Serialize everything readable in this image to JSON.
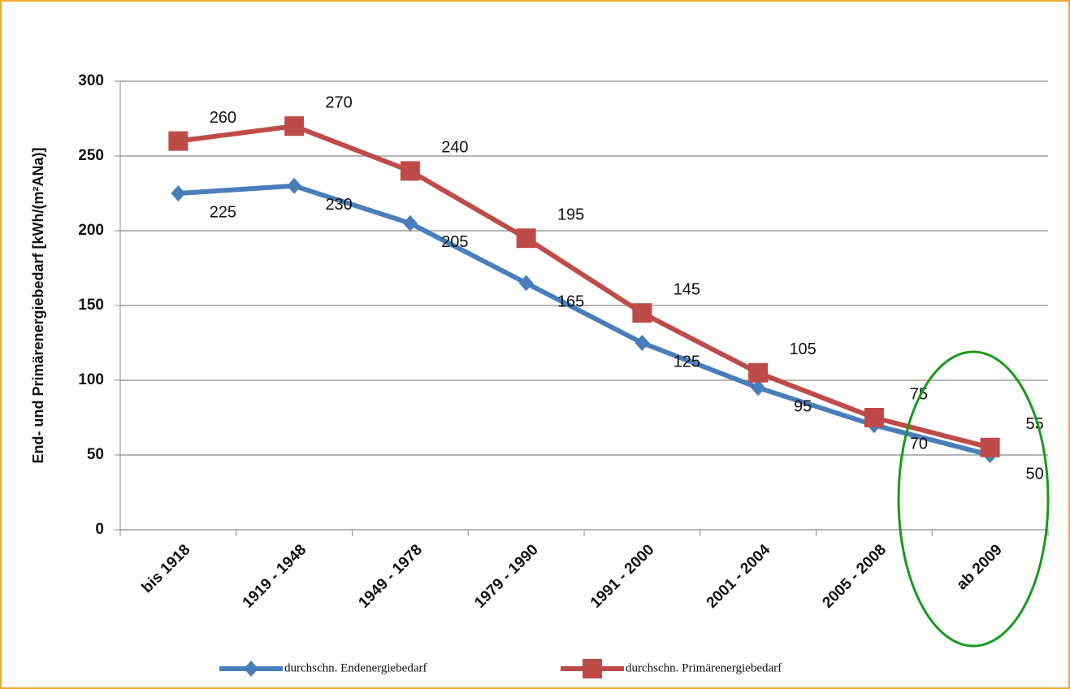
{
  "chart_data": {
    "type": "line",
    "y_label": "End- und Primärenergiebedarf [kWh/(m²ANa)]",
    "categories": [
      "bis 1918",
      "1919 - 1948",
      "1949 - 1978",
      "1979 - 1990",
      "1991 - 2000",
      "2001 - 2004",
      "2005 - 2008",
      "ab 2009"
    ],
    "series": [
      {
        "name": "durchschn. Endenergiebedarf",
        "color": "#4a7ebb",
        "marker": "diamond",
        "values": [
          225,
          230,
          205,
          165,
          125,
          95,
          70,
          50
        ]
      },
      {
        "name": "durchschn. Primärenergiebedarf",
        "color": "#be4b48",
        "marker": "square",
        "values": [
          260,
          270,
          240,
          195,
          145,
          105,
          75,
          55
        ]
      }
    ],
    "ylim": [
      0,
      300
    ],
    "yticks": [
      0,
      50,
      100,
      150,
      200,
      250,
      300
    ],
    "grid": true,
    "legend": "bottom"
  }
}
